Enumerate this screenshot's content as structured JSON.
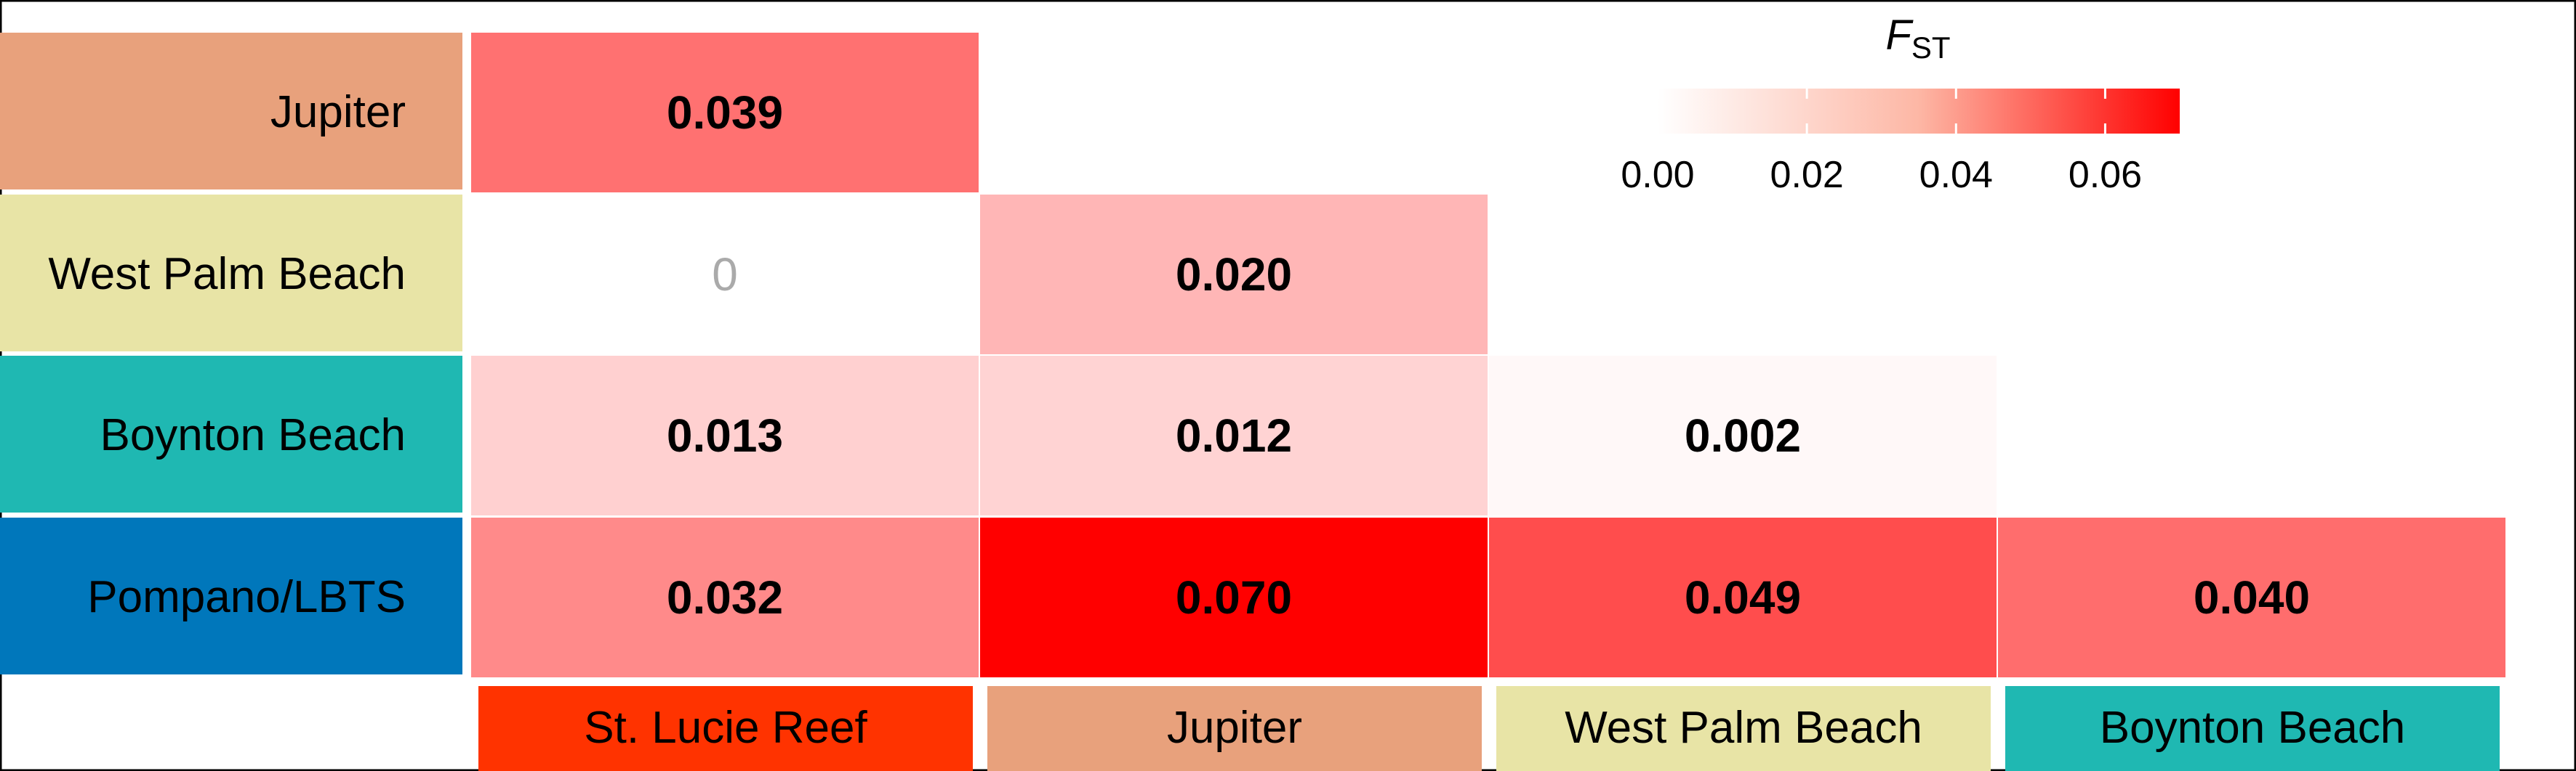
{
  "chart_data": {
    "type": "heatmap",
    "legend": {
      "title_main": "F",
      "title_sub": "ST",
      "ticks": [
        "0.00",
        "0.02",
        "0.04",
        "0.06"
      ],
      "tick_values": [
        0.0,
        0.02,
        0.04,
        0.06
      ],
      "range": [
        0.0,
        0.07
      ],
      "placement": "top-right",
      "color_low": "#ffffff",
      "color_high": "#ff0000"
    },
    "rows": [
      {
        "label": "Jupiter",
        "color": "#e8a17c"
      },
      {
        "label": "West Palm Beach",
        "color": "#e8e4a6"
      },
      {
        "label": "Boynton Beach",
        "color": "#1fb8b2"
      },
      {
        "label": "Pompano/LBTS",
        "color": "#0077bb"
      }
    ],
    "columns": [
      {
        "label": "St. Lucie Reef",
        "color": "#ff3300"
      },
      {
        "label": "Jupiter",
        "color": "#e8a17c"
      },
      {
        "label": "West Palm Beach",
        "color": "#e8e4a6"
      },
      {
        "label": "Boynton Beach",
        "color": "#1fb8b2"
      }
    ],
    "cells": [
      {
        "row": 0,
        "col": 0,
        "value": 0.039,
        "text": "0.039",
        "bold": true
      },
      {
        "row": 1,
        "col": 0,
        "value": 0.0,
        "text": "0",
        "bold": false
      },
      {
        "row": 1,
        "col": 1,
        "value": 0.02,
        "text": "0.020",
        "bold": true
      },
      {
        "row": 2,
        "col": 0,
        "value": 0.013,
        "text": "0.013",
        "bold": true
      },
      {
        "row": 2,
        "col": 1,
        "value": 0.012,
        "text": "0.012",
        "bold": true
      },
      {
        "row": 2,
        "col": 2,
        "value": 0.002,
        "text": "0.002",
        "bold": true
      },
      {
        "row": 3,
        "col": 0,
        "value": 0.032,
        "text": "0.032",
        "bold": true
      },
      {
        "row": 3,
        "col": 1,
        "value": 0.07,
        "text": "0.070",
        "bold": true
      },
      {
        "row": 3,
        "col": 2,
        "value": 0.049,
        "text": "0.049",
        "bold": true
      },
      {
        "row": 3,
        "col": 3,
        "value": 0.04,
        "text": "0.040",
        "bold": true
      }
    ]
  }
}
